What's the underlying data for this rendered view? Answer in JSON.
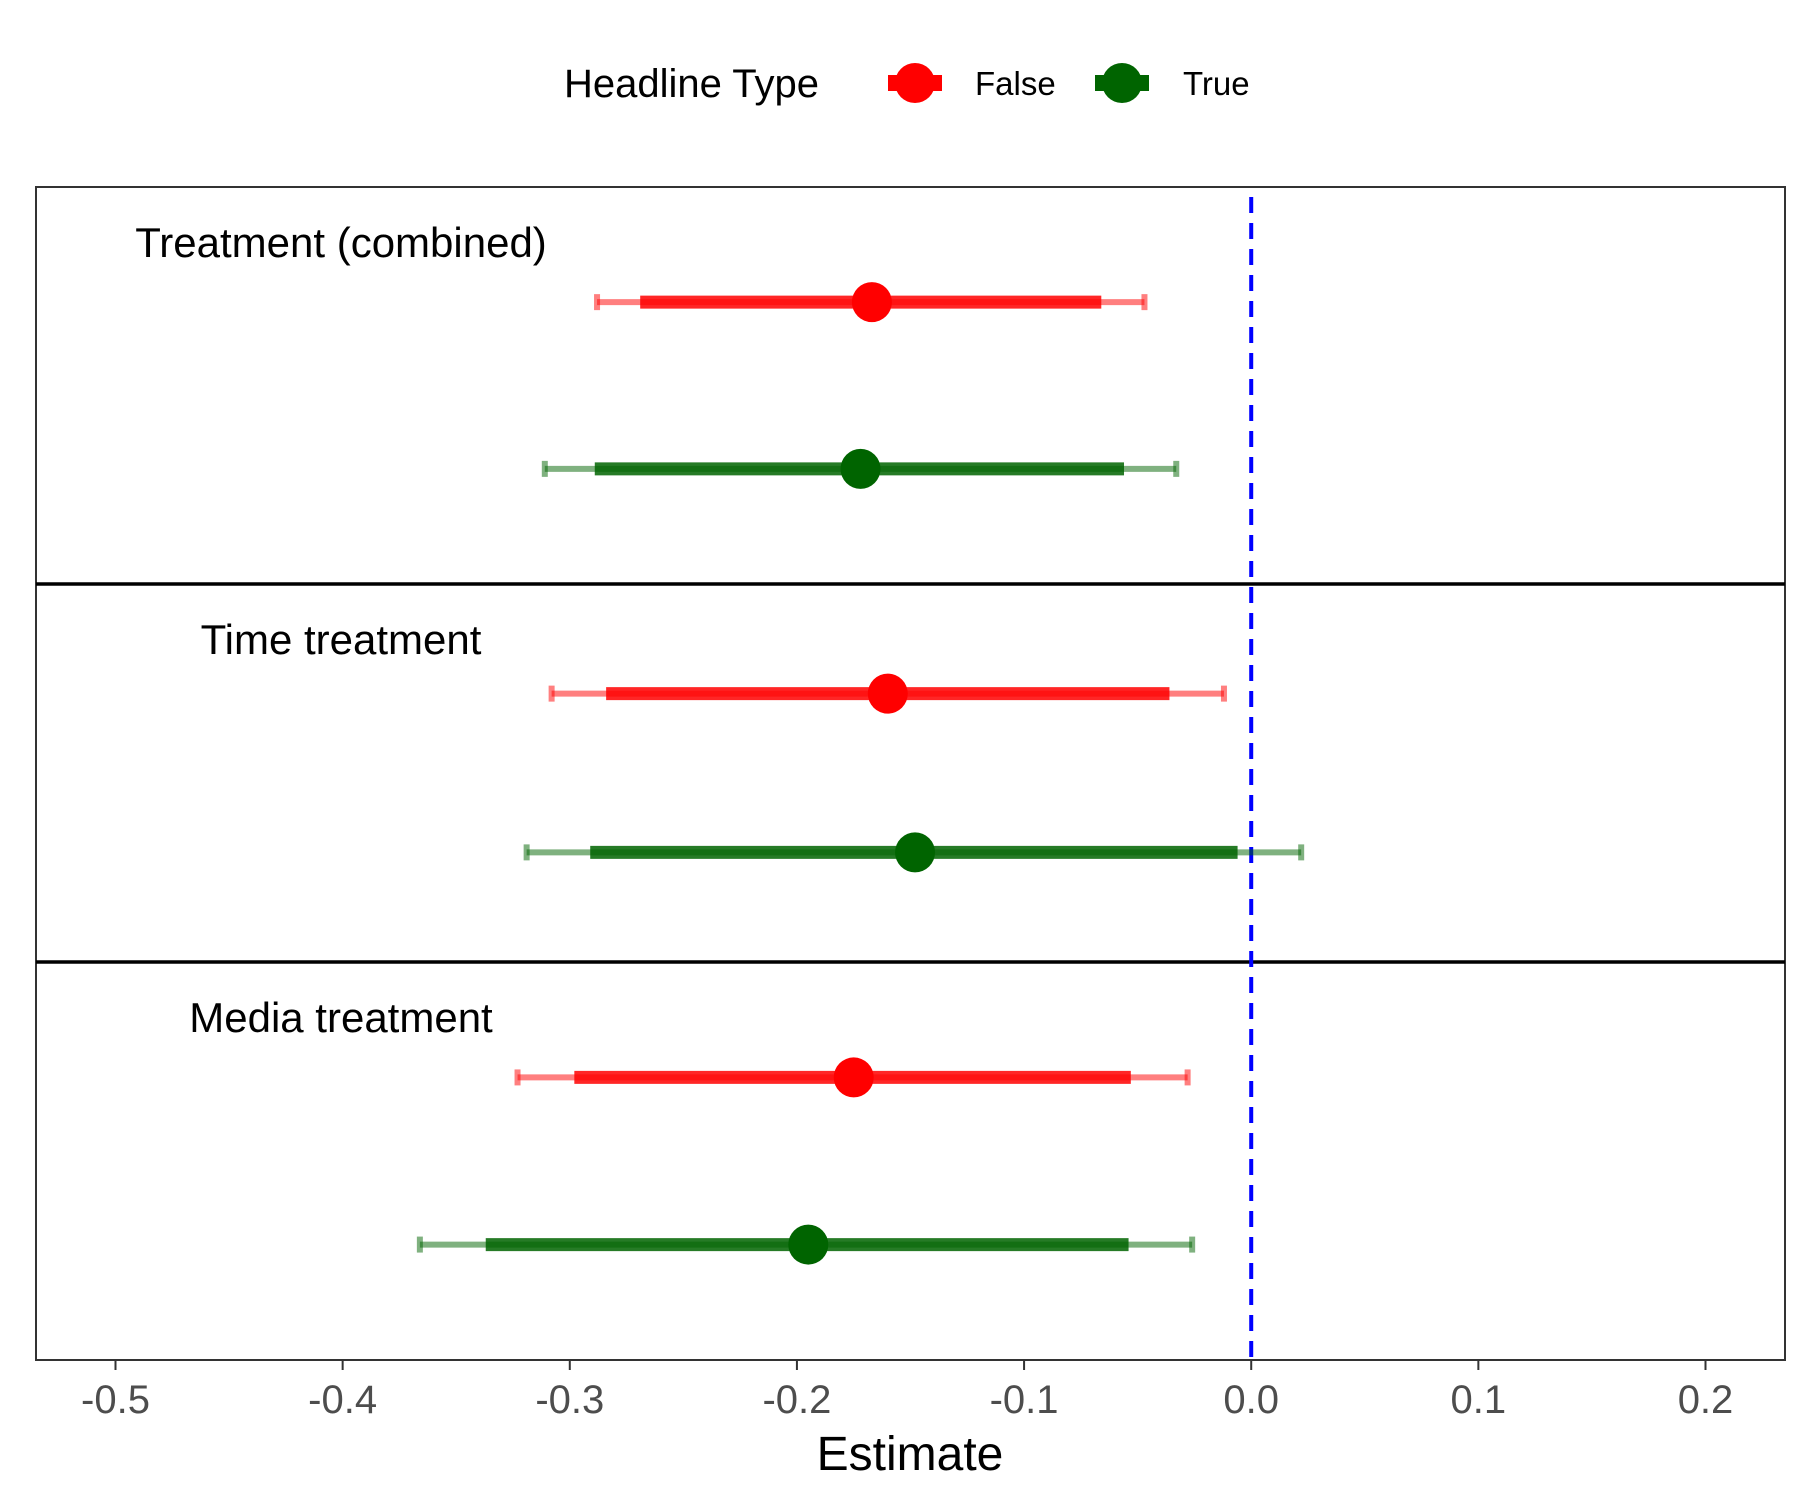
{
  "legend": {
    "title": "Headline Type",
    "items": [
      {
        "label": "False",
        "color": "#ff0000"
      },
      {
        "label": "True",
        "color": "#006400"
      }
    ]
  },
  "chart_data": {
    "type": "forest",
    "xlabel": "Estimate",
    "ylabel": "",
    "xlim": [
      -0.535,
      0.235
    ],
    "x_ticks": [
      "-0.5",
      "-0.4",
      "-0.3",
      "-0.2",
      "-0.1",
      "0.0",
      "0.1",
      "0.2"
    ],
    "x_tick_values": [
      -0.5,
      -0.4,
      -0.3,
      -0.2,
      -0.1,
      0.0,
      0.1,
      0.2
    ],
    "reference_line": {
      "x": 0.0,
      "style": "dashed",
      "color": "#0000ff"
    },
    "legend_position": "top",
    "grid": false,
    "panels": [
      {
        "label": "Treatment (combined)",
        "estimates": [
          {
            "series": "False",
            "estimate": -0.167,
            "ci90": [
              -0.269,
              -0.066
            ],
            "ci95": [
              -0.288,
              -0.047
            ]
          },
          {
            "series": "True",
            "estimate": -0.172,
            "ci90": [
              -0.289,
              -0.056
            ],
            "ci95": [
              -0.311,
              -0.033
            ]
          }
        ]
      },
      {
        "label": "Time treatment",
        "estimates": [
          {
            "series": "False",
            "estimate": -0.16,
            "ci90": [
              -0.284,
              -0.036
            ],
            "ci95": [
              -0.308,
              -0.012
            ]
          },
          {
            "series": "True",
            "estimate": -0.148,
            "ci90": [
              -0.291,
              -0.006
            ],
            "ci95": [
              -0.319,
              0.022
            ]
          }
        ]
      },
      {
        "label": "Media treatment",
        "estimates": [
          {
            "series": "False",
            "estimate": -0.175,
            "ci90": [
              -0.298,
              -0.053
            ],
            "ci95": [
              -0.323,
              -0.028
            ]
          },
          {
            "series": "True",
            "estimate": -0.195,
            "ci90": [
              -0.337,
              -0.054
            ],
            "ci95": [
              -0.366,
              -0.026
            ]
          }
        ]
      }
    ]
  }
}
